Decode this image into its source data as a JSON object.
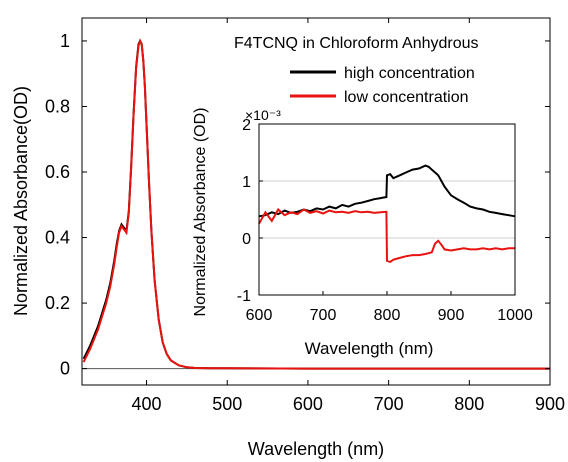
{
  "chart_data": [
    {
      "type": "line",
      "title": "",
      "xlabel": "Wavelength (nm)",
      "ylabel": "Normalized Absorbance(OD)",
      "xlim": [
        320,
        900
      ],
      "ylim": [
        -0.05,
        1.07
      ],
      "xticks": [
        400,
        500,
        600,
        700,
        800,
        900
      ],
      "xtick_labels": [
        "400",
        "500",
        "600",
        "700",
        "800",
        "900"
      ],
      "yticks": [
        0,
        0.2,
        0.4,
        0.6,
        0.8,
        1
      ],
      "ytick_labels": [
        "0",
        "0.2",
        "0.4",
        "0.6",
        "0.8",
        "1"
      ],
      "grid": false,
      "zero_line": true,
      "legend": {
        "title": "F4TCNQ in Chloroform Anhydrous",
        "placement": "top-right",
        "entries": [
          "high concentration",
          "low concentration"
        ]
      },
      "series": [
        {
          "name": "high concentration",
          "color": "#000000",
          "x": [
            322,
            330,
            340,
            350,
            355,
            360,
            363,
            366,
            369,
            372,
            375,
            378,
            381,
            384,
            387,
            390,
            392,
            394,
            396,
            398,
            400,
            403,
            406,
            410,
            415,
            420,
            425,
            430,
            440,
            450,
            460,
            480,
            500,
            600,
            700,
            800,
            900
          ],
          "y": [
            0.03,
            0.07,
            0.13,
            0.21,
            0.26,
            0.33,
            0.38,
            0.42,
            0.44,
            0.43,
            0.42,
            0.48,
            0.62,
            0.78,
            0.92,
            0.99,
            1.0,
            0.99,
            0.94,
            0.86,
            0.74,
            0.57,
            0.42,
            0.27,
            0.15,
            0.08,
            0.045,
            0.025,
            0.01,
            0.004,
            0.002,
            0.001,
            0.001,
            0.0,
            0.0,
            0.0,
            0.0
          ]
        },
        {
          "name": "low concentration",
          "color": "#e8130f",
          "x": [
            322,
            330,
            340,
            350,
            355,
            360,
            363,
            366,
            369,
            372,
            375,
            378,
            381,
            384,
            387,
            390,
            392,
            394,
            396,
            398,
            400,
            403,
            406,
            410,
            415,
            420,
            425,
            430,
            440,
            450,
            460,
            480,
            500,
            600,
            700,
            800,
            900
          ],
          "y": [
            0.02,
            0.06,
            0.12,
            0.2,
            0.25,
            0.32,
            0.37,
            0.415,
            0.435,
            0.425,
            0.415,
            0.475,
            0.615,
            0.775,
            0.915,
            0.985,
            1.0,
            0.99,
            0.94,
            0.86,
            0.74,
            0.57,
            0.42,
            0.27,
            0.15,
            0.08,
            0.045,
            0.025,
            0.01,
            0.004,
            0.002,
            0.001,
            0.001,
            0.0,
            0.0,
            0.0,
            0.0
          ]
        }
      ]
    },
    {
      "type": "line",
      "title": "",
      "xlabel": "Wavelength (nm)",
      "ylabel": "Normalized Absorbance (OD)",
      "y_multiplier": "×10⁻³",
      "xlim": [
        600,
        1000
      ],
      "ylim": [
        -1,
        2
      ],
      "xticks": [
        600,
        700,
        800,
        900,
        1000
      ],
      "xtick_labels": [
        "600",
        "700",
        "800",
        "900",
        "1000"
      ],
      "yticks": [
        -1,
        0,
        1,
        2
      ],
      "ytick_labels": [
        "-1",
        "0",
        "1",
        "2"
      ],
      "grid": true,
      "series": [
        {
          "name": "high concentration",
          "color": "#000000",
          "x": [
            600,
            610,
            620,
            630,
            640,
            650,
            660,
            670,
            680,
            690,
            700,
            710,
            720,
            730,
            740,
            750,
            760,
            770,
            780,
            790,
            799,
            800,
            805,
            810,
            820,
            830,
            840,
            850,
            860,
            865,
            870,
            880,
            890,
            900,
            910,
            920,
            930,
            940,
            950,
            960,
            970,
            980,
            990,
            1000
          ],
          "y": [
            0.38,
            0.4,
            0.45,
            0.42,
            0.48,
            0.44,
            0.46,
            0.5,
            0.47,
            0.52,
            0.5,
            0.55,
            0.52,
            0.58,
            0.55,
            0.6,
            0.62,
            0.65,
            0.68,
            0.7,
            0.72,
            1.1,
            1.12,
            1.05,
            1.1,
            1.15,
            1.2,
            1.22,
            1.27,
            1.25,
            1.2,
            1.1,
            0.9,
            0.75,
            0.68,
            0.62,
            0.55,
            0.52,
            0.5,
            0.46,
            0.44,
            0.42,
            0.4,
            0.38
          ]
        },
        {
          "name": "low concentration",
          "color": "#e8130f",
          "x": [
            600,
            610,
            620,
            630,
            640,
            650,
            660,
            670,
            680,
            690,
            700,
            710,
            720,
            730,
            740,
            750,
            760,
            770,
            780,
            790,
            799,
            800,
            805,
            810,
            820,
            830,
            840,
            850,
            860,
            870,
            875,
            880,
            885,
            890,
            900,
            910,
            920,
            930,
            940,
            950,
            960,
            970,
            980,
            990,
            1000
          ],
          "y": [
            0.25,
            0.45,
            0.3,
            0.5,
            0.4,
            0.45,
            0.42,
            0.5,
            0.44,
            0.47,
            0.43,
            0.48,
            0.45,
            0.46,
            0.44,
            0.47,
            0.45,
            0.46,
            0.44,
            0.45,
            0.46,
            -0.4,
            -0.42,
            -0.38,
            -0.35,
            -0.32,
            -0.3,
            -0.3,
            -0.28,
            -0.25,
            -0.1,
            -0.05,
            -0.12,
            -0.2,
            -0.22,
            -0.2,
            -0.18,
            -0.2,
            -0.2,
            -0.18,
            -0.2,
            -0.18,
            -0.2,
            -0.18,
            -0.18
          ]
        }
      ]
    }
  ]
}
